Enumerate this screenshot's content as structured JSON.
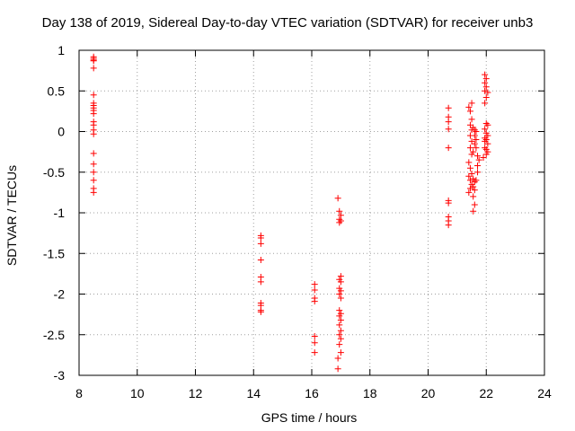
{
  "chart_data": {
    "type": "scatter",
    "title": "Day 138 of 2019, Sidereal Day-to-day VTEC variation (SDTVAR) for receiver unb3",
    "xlabel": "GPS time / hours",
    "ylabel": "SDTVAR / TECUs",
    "xlim": [
      8,
      24
    ],
    "ylim": [
      -3,
      1
    ],
    "xticks": [
      "8",
      "10",
      "12",
      "14",
      "16",
      "18",
      "20",
      "22",
      "24"
    ],
    "yticks": [
      "1",
      "0.5",
      "0",
      "-0.5",
      "-1",
      "-1.5",
      "-2",
      "-2.5",
      "-3"
    ],
    "grid": true,
    "marker": "+",
    "color": "#ff0000",
    "series": [
      {
        "name": "SDTVAR",
        "points": [
          [
            8.5,
            0.92
          ],
          [
            8.5,
            0.9
          ],
          [
            8.5,
            0.88
          ],
          [
            8.5,
            0.87
          ],
          [
            8.5,
            0.78
          ],
          [
            8.5,
            0.45
          ],
          [
            8.5,
            0.35
          ],
          [
            8.5,
            0.32
          ],
          [
            8.5,
            0.29
          ],
          [
            8.5,
            0.26
          ],
          [
            8.5,
            0.22
          ],
          [
            8.5,
            0.12
          ],
          [
            8.5,
            0.08
          ],
          [
            8.5,
            0.02
          ],
          [
            8.5,
            -0.03
          ],
          [
            8.5,
            -0.27
          ],
          [
            8.5,
            -0.4
          ],
          [
            8.5,
            -0.5
          ],
          [
            8.5,
            -0.6
          ],
          [
            8.5,
            -0.7
          ],
          [
            8.5,
            -0.75
          ],
          [
            14.25,
            -1.28
          ],
          [
            14.25,
            -1.31
          ],
          [
            14.25,
            -1.38
          ],
          [
            14.25,
            -1.58
          ],
          [
            14.25,
            -1.79
          ],
          [
            14.25,
            -1.85
          ],
          [
            14.25,
            -2.11
          ],
          [
            14.25,
            -2.14
          ],
          [
            14.25,
            -2.2
          ],
          [
            14.25,
            -2.22
          ],
          [
            16.1,
            -1.88
          ],
          [
            16.1,
            -1.95
          ],
          [
            16.1,
            -2.05
          ],
          [
            16.1,
            -2.09
          ],
          [
            16.1,
            -2.52
          ],
          [
            16.1,
            -2.6
          ],
          [
            16.1,
            -2.72
          ],
          [
            16.9,
            -0.82
          ],
          [
            16.95,
            -0.98
          ],
          [
            17.0,
            -1.03
          ],
          [
            16.95,
            -1.08
          ],
          [
            17.0,
            -1.1
          ],
          [
            16.95,
            -1.12
          ],
          [
            17.0,
            -1.78
          ],
          [
            16.95,
            -1.82
          ],
          [
            17.0,
            -1.85
          ],
          [
            16.95,
            -1.93
          ],
          [
            17.0,
            -1.96
          ],
          [
            16.95,
            -2.0
          ],
          [
            17.0,
            -2.05
          ],
          [
            16.95,
            -2.2
          ],
          [
            17.0,
            -2.24
          ],
          [
            16.95,
            -2.27
          ],
          [
            17.0,
            -2.32
          ],
          [
            16.95,
            -2.38
          ],
          [
            17.0,
            -2.45
          ],
          [
            16.95,
            -2.5
          ],
          [
            17.0,
            -2.55
          ],
          [
            16.95,
            -2.62
          ],
          [
            17.0,
            -2.72
          ],
          [
            16.9,
            -2.79
          ],
          [
            16.9,
            -2.92
          ],
          [
            20.7,
            0.29
          ],
          [
            20.7,
            0.18
          ],
          [
            20.7,
            0.12
          ],
          [
            20.7,
            0.03
          ],
          [
            20.7,
            -0.2
          ],
          [
            20.7,
            -0.85
          ],
          [
            20.7,
            -0.88
          ],
          [
            20.7,
            -1.05
          ],
          [
            20.7,
            -1.1
          ],
          [
            20.7,
            -1.15
          ],
          [
            21.4,
            0.3
          ],
          [
            21.45,
            0.25
          ],
          [
            21.5,
            0.35
          ],
          [
            21.5,
            0.15
          ],
          [
            21.45,
            0.08
          ],
          [
            21.5,
            0.02
          ],
          [
            21.45,
            -0.05
          ],
          [
            21.5,
            -0.12
          ],
          [
            21.45,
            -0.2
          ],
          [
            21.5,
            -0.28
          ],
          [
            21.4,
            -0.38
          ],
          [
            21.45,
            -0.45
          ],
          [
            21.4,
            -0.55
          ],
          [
            21.5,
            -0.52
          ],
          [
            21.45,
            -0.6
          ],
          [
            21.5,
            -0.65
          ],
          [
            21.45,
            -0.7
          ],
          [
            21.4,
            -0.75
          ],
          [
            21.55,
            -0.58
          ],
          [
            21.6,
            -0.62
          ],
          [
            21.55,
            -0.68
          ],
          [
            21.6,
            -0.72
          ],
          [
            21.65,
            -0.6
          ],
          [
            21.55,
            -0.8
          ],
          [
            21.6,
            -0.9
          ],
          [
            21.55,
            -0.98
          ],
          [
            21.55,
            0.05
          ],
          [
            21.6,
            -0.05
          ],
          [
            21.6,
            0.02
          ],
          [
            21.65,
            -0.1
          ],
          [
            21.65,
            -0.2
          ],
          [
            21.7,
            -0.3
          ],
          [
            21.7,
            -0.42
          ],
          [
            21.75,
            -0.35
          ],
          [
            21.65,
            0.0
          ],
          [
            21.7,
            -0.5
          ],
          [
            21.6,
            -0.15
          ],
          [
            21.55,
            -0.25
          ],
          [
            21.95,
            0.7
          ],
          [
            22.0,
            0.65
          ],
          [
            21.95,
            0.6
          ],
          [
            22.0,
            0.55
          ],
          [
            21.95,
            0.5
          ],
          [
            22.05,
            0.48
          ],
          [
            22.0,
            0.42
          ],
          [
            21.95,
            0.35
          ],
          [
            22.0,
            0.1
          ],
          [
            22.05,
            0.08
          ],
          [
            21.95,
            0.03
          ],
          [
            22.0,
            -0.02
          ],
          [
            22.05,
            -0.05
          ],
          [
            21.95,
            -0.08
          ],
          [
            22.0,
            -0.1
          ],
          [
            22.05,
            -0.15
          ],
          [
            21.95,
            -0.2
          ],
          [
            22.0,
            -0.22
          ],
          [
            22.05,
            -0.25
          ],
          [
            22.0,
            -0.28
          ],
          [
            21.9,
            -0.32
          ],
          [
            21.95,
            -0.12
          ]
        ]
      }
    ]
  }
}
